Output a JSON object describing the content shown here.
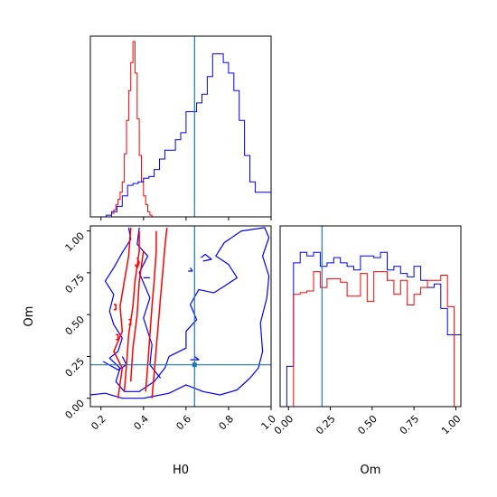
{
  "chart_data": [
    {
      "type": "histogram",
      "panel": "top-left",
      "xlim": [
        0.15,
        1.0
      ],
      "bin_width": 0.025,
      "series": [
        {
          "color": "#ff0000",
          "bin_start": 0.25,
          "bin_width": 0.01,
          "counts": [
            0.02,
            0.04,
            0.07,
            0.1,
            0.14,
            0.2,
            0.36,
            0.55,
            0.72,
            0.88,
            1.0,
            0.82,
            0.56,
            0.35,
            0.2,
            0.12,
            0.07,
            0.03,
            0.01,
            0.0
          ]
        },
        {
          "color": "#0000ff",
          "bin_start": 0.15,
          "counts": [
            0.0,
            0.0,
            0.0,
            0.01,
            0.03,
            0.06,
            0.12,
            0.18,
            0.19,
            0.2,
            0.22,
            0.23,
            0.27,
            0.33,
            0.38,
            0.38,
            0.44,
            0.48,
            0.6,
            0.6,
            0.65,
            0.7,
            0.8,
            0.93,
            0.93,
            0.88,
            0.82,
            0.72,
            0.55,
            0.35,
            0.2,
            0.14,
            0.14,
            0.14
          ]
        }
      ],
      "truth_line_x": 0.64
    },
    {
      "type": "contour",
      "panel": "bottom-left",
      "xlabel": "H0",
      "ylabel": "Om",
      "xlim": [
        0.15,
        1.0
      ],
      "ylim": [
        -0.05,
        1.03
      ],
      "xticks": [
        "0.2",
        "0.4",
        "0.6",
        "0.8",
        "1.0"
      ],
      "yticks": [
        "0.00",
        "0.25",
        "0.50",
        "0.75",
        "1.00"
      ],
      "xtick_values": [
        0.2,
        0.4,
        0.6,
        0.8,
        1.0
      ],
      "ytick_values": [
        0.0,
        0.25,
        0.5,
        0.75,
        1.0
      ],
      "truth": {
        "x": 0.64,
        "y": 0.2
      },
      "series": [
        {
          "color": "#0000ff",
          "contours": [
            [
              [
                0.15,
                0.02
              ],
              [
                0.22,
                0.03
              ],
              [
                0.3,
                0.0
              ],
              [
                0.4,
                0.0
              ],
              [
                0.44,
                0.01
              ],
              [
                0.52,
                0.03
              ],
              [
                0.6,
                0.08
              ],
              [
                0.68,
                0.04
              ],
              [
                0.76,
                0.02
              ],
              [
                0.84,
                0.05
              ],
              [
                0.9,
                0.12
              ],
              [
                0.94,
                0.18
              ],
              [
                0.96,
                0.28
              ],
              [
                0.95,
                0.45
              ],
              [
                0.98,
                0.6
              ],
              [
                0.99,
                0.73
              ],
              [
                0.96,
                0.85
              ],
              [
                0.99,
                0.96
              ],
              [
                0.97,
                1.02
              ],
              [
                0.86,
                1.0
              ],
              [
                0.78,
                0.93
              ],
              [
                0.74,
                0.85
              ],
              [
                0.8,
                0.8
              ],
              [
                0.84,
                0.72
              ],
              [
                0.78,
                0.67
              ],
              [
                0.73,
                0.63
              ],
              [
                0.66,
                0.65
              ],
              [
                0.62,
                0.56
              ],
              [
                0.65,
                0.47
              ],
              [
                0.6,
                0.4
              ],
              [
                0.6,
                0.3
              ],
              [
                0.52,
                0.25
              ],
              [
                0.5,
                0.18
              ],
              [
                0.45,
                0.1
              ],
              [
                0.38,
                0.04
              ],
              [
                0.31,
                0.04
              ],
              [
                0.27,
                0.1
              ],
              [
                0.29,
                0.18
              ],
              [
                0.24,
                0.24
              ],
              [
                0.28,
                0.28
              ],
              [
                0.3,
                0.36
              ],
              [
                0.26,
                0.44
              ],
              [
                0.24,
                0.52
              ],
              [
                0.26,
                0.62
              ],
              [
                0.22,
                0.7
              ],
              [
                0.26,
                0.78
              ],
              [
                0.3,
                0.87
              ],
              [
                0.34,
                0.95
              ],
              [
                0.33,
                1.02
              ]
            ],
            [
              [
                0.38,
                1.02
              ],
              [
                0.37,
                0.92
              ],
              [
                0.42,
                0.85
              ],
              [
                0.38,
                0.75
              ],
              [
                0.43,
                0.6
              ],
              [
                0.4,
                0.48
              ],
              [
                0.44,
                0.32
              ],
              [
                0.43,
                0.2
              ],
              [
                0.48,
                0.12
              ]
            ],
            [
              [
                0.21,
                0.22
              ],
              [
                0.28,
                0.17
              ],
              [
                0.32,
                0.2
              ],
              [
                0.3,
                0.25
              ]
            ],
            [
              [
                0.68,
                0.82
              ],
              [
                0.72,
                0.83
              ],
              [
                0.69,
                0.86
              ],
              [
                0.67,
                0.84
              ]
            ],
            [
              [
                0.61,
                0.76
              ],
              [
                0.63,
                0.76
              ],
              [
                0.62,
                0.78
              ]
            ],
            [
              [
                0.62,
                0.23
              ],
              [
                0.66,
                0.23
              ],
              [
                0.64,
                0.25
              ]
            ],
            [
              [
                0.4,
                0.72
              ],
              [
                0.43,
                0.72
              ]
            ]
          ]
        },
        {
          "color": "#ff0000",
          "contours": [
            [
              [
                0.28,
                0.0
              ],
              [
                0.3,
                0.18
              ],
              [
                0.26,
                0.28
              ],
              [
                0.3,
                0.4
              ],
              [
                0.29,
                0.55
              ],
              [
                0.31,
                0.7
              ],
              [
                0.33,
                0.85
              ],
              [
                0.34,
                1.02
              ]
            ],
            [
              [
                0.44,
                0.0
              ],
              [
                0.45,
                0.15
              ],
              [
                0.46,
                0.3
              ],
              [
                0.47,
                0.45
              ],
              [
                0.48,
                0.6
              ],
              [
                0.49,
                0.75
              ],
              [
                0.5,
                0.9
              ],
              [
                0.51,
                1.02
              ]
            ],
            [
              [
                0.31,
                0.04
              ],
              [
                0.32,
                0.2
              ],
              [
                0.33,
                0.38
              ],
              [
                0.35,
                0.55
              ],
              [
                0.36,
                0.7
              ],
              [
                0.38,
                0.88
              ],
              [
                0.38,
                1.0
              ]
            ],
            [
              [
                0.41,
                0.04
              ],
              [
                0.42,
                0.2
              ],
              [
                0.43,
                0.38
              ],
              [
                0.44,
                0.55
              ],
              [
                0.45,
                0.7
              ],
              [
                0.46,
                0.88
              ],
              [
                0.46,
                1.0
              ]
            ],
            [
              [
                0.34,
                0.1
              ],
              [
                0.35,
                0.3
              ],
              [
                0.37,
                0.5
              ],
              [
                0.38,
                0.7
              ],
              [
                0.4,
                0.88
              ]
            ],
            [
              [
                0.36,
                0.8
              ],
              [
                0.37,
                0.78
              ],
              [
                0.38,
                0.81
              ],
              [
                0.37,
                0.84
              ]
            ],
            [
              [
                0.33,
                0.44
              ],
              [
                0.34,
                0.44
              ],
              [
                0.34,
                0.47
              ],
              [
                0.33,
                0.47
              ]
            ],
            [
              [
                0.26,
                0.53
              ],
              [
                0.27,
                0.53
              ],
              [
                0.27,
                0.56
              ],
              [
                0.26,
                0.56
              ]
            ],
            [
              [
                0.27,
                0.35
              ],
              [
                0.28,
                0.35
              ],
              [
                0.28,
                0.38
              ],
              [
                0.27,
                0.38
              ]
            ]
          ]
        }
      ]
    },
    {
      "type": "histogram",
      "panel": "bottom-right",
      "xlabel": "Om",
      "xlim": [
        -0.05,
        1.03
      ],
      "xticks": [
        "0.00",
        "0.25",
        "0.50",
        "0.75",
        "1.00"
      ],
      "xtick_values": [
        0.0,
        0.25,
        0.5,
        0.75,
        1.0
      ],
      "bin_start": -0.05,
      "bin_width": 0.04,
      "series": [
        {
          "color": "#0000ff",
          "counts": [
            0.0,
            0.23,
            0.82,
            0.88,
            0.86,
            0.88,
            0.8,
            0.82,
            0.85,
            0.82,
            0.8,
            0.78,
            0.86,
            0.86,
            0.85,
            0.88,
            0.78,
            0.8,
            0.76,
            0.74,
            0.8,
            0.72,
            0.68,
            0.7,
            0.56,
            0.41,
            0.41
          ]
        },
        {
          "color": "#ff0000",
          "counts": [
            0.0,
            0.0,
            0.64,
            0.65,
            0.66,
            0.77,
            0.68,
            0.73,
            0.73,
            0.71,
            0.63,
            0.63,
            0.76,
            0.6,
            0.77,
            0.77,
            0.72,
            0.64,
            0.72,
            0.58,
            0.64,
            0.68,
            0.72,
            0.72,
            0.75,
            0.57,
            0.0
          ]
        }
      ],
      "truth_line_x": 0.2
    }
  ]
}
